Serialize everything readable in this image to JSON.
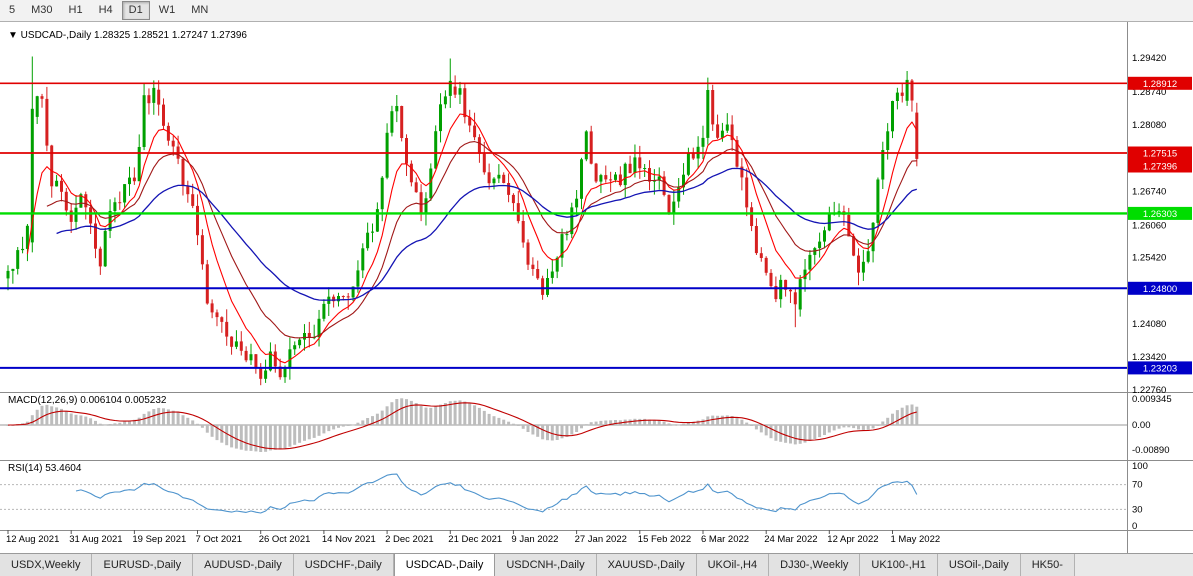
{
  "toolbar": {
    "timeframes": [
      "5",
      "M30",
      "H1",
      "H4",
      "D1",
      "W1",
      "MN"
    ],
    "selected": "D1"
  },
  "chart": {
    "header": {
      "symbol_label": "USDCAD-,Daily",
      "ohlc": [
        "1.28325",
        "1.28521",
        "1.27247",
        "1.27396"
      ]
    },
    "y_axis_labels": [
      "1.29420",
      "1.28740",
      "1.28080",
      "1.27400",
      "1.26740",
      "1.26060",
      "1.25420",
      "1.24740",
      "1.24080",
      "1.23420",
      "1.22760"
    ],
    "x_axis_labels": [
      "12 Aug 2021",
      "31 Aug 2021",
      "19 Sep 2021",
      "7 Oct 2021",
      "26 Oct 2021",
      "14 Nov 2021",
      "2 Dec 2021",
      "21 Dec 2021",
      "9 Jan 2022",
      "27 Jan 2022",
      "15 Feb 2022",
      "6 Mar 2022",
      "24 Mar 2022",
      "12 Apr 2022",
      "1 May 2022"
    ],
    "levels": [
      {
        "price": 1.28912,
        "label": "1.28912",
        "color": "#e00000",
        "width": 1.7,
        "type": "resistance"
      },
      {
        "price": 1.27515,
        "label": "1.27515",
        "color": "#e00000",
        "width": 1.7,
        "type": "resistance"
      },
      {
        "price": 1.26303,
        "label": "1.26303",
        "color": "#00dd00",
        "width": 2.4,
        "type": "support"
      },
      {
        "price": 1.248,
        "label": "1.24800",
        "color": "#0000c8",
        "width": 2.0,
        "type": "support"
      },
      {
        "price": 1.23203,
        "label": "1.23203",
        "color": "#0000c8",
        "width": 2.0,
        "type": "support"
      }
    ],
    "current_price": {
      "label": "1.27396",
      "value": 1.27396,
      "color": "#e00000"
    },
    "ma_colors": {
      "fast": "#ff0000",
      "mid": "#a01818",
      "slow": "#1414b4"
    }
  },
  "macd": {
    "label": "MACD(12,26,9) 0.006104 0.005232",
    "axis_labels": [
      "0.009345",
      "0.00",
      "-0.00890"
    ],
    "histogram_color": "#bdbdbd",
    "signal_color": "#c00000"
  },
  "rsi": {
    "label": "RSI(14) 53.4604",
    "axis_labels": [
      "100",
      "70",
      "30",
      "0"
    ],
    "levels": [
      70,
      30
    ],
    "line_color": "#4f94cd"
  },
  "tabs": {
    "items": [
      "USDX,Weekly",
      "EURUSD-,Daily",
      "AUDUSD-,Daily",
      "USDCHF-,Daily",
      "USDCAD-,Daily",
      "USDCNH-,Daily",
      "XAUUSD-,Daily",
      "UKOil-,H4",
      "DJ30-,Weekly",
      "UK100-,H1",
      "USOil-,Daily",
      "HK50-"
    ],
    "selected": "USDCAD-,Daily"
  },
  "chart_data": {
    "type": "candlestick",
    "symbol": "USDCAD",
    "timeframe": "Daily",
    "y_range": [
      1.223,
      1.2965
    ],
    "x_tick_dates": [
      "12 Aug 2021",
      "31 Aug 2021",
      "19 Sep 2021",
      "7 Oct 2021",
      "26 Oct 2021",
      "14 Nov 2021",
      "2 Dec 2021",
      "21 Dec 2021",
      "9 Jan 2022",
      "27 Jan 2022",
      "15 Feb 2022",
      "6 Mar 2022",
      "24 Mar 2022",
      "12 Apr 2022",
      "1 May 2022"
    ],
    "bar_count": 188,
    "first_open": 1.25,
    "close_noise": 0.0036,
    "wick_noise": 0.0026,
    "colors": {
      "up": "#00a000",
      "down": "#d62020"
    },
    "anchors": [
      [
        0,
        1.2515
      ],
      [
        3,
        1.2555
      ],
      [
        4,
        1.259
      ],
      [
        5,
        1.284
      ],
      [
        7,
        1.2865
      ],
      [
        9,
        1.27
      ],
      [
        12,
        1.2635
      ],
      [
        13,
        1.2615
      ],
      [
        15,
        1.2665
      ],
      [
        17,
        1.26
      ],
      [
        19,
        1.2525
      ],
      [
        21,
        1.264
      ],
      [
        24,
        1.268
      ],
      [
        26,
        1.27
      ],
      [
        28,
        1.285
      ],
      [
        30,
        1.288
      ],
      [
        33,
        1.279
      ],
      [
        36,
        1.27
      ],
      [
        39,
        1.2595
      ],
      [
        41,
        1.2455
      ],
      [
        44,
        1.2405
      ],
      [
        47,
        1.236
      ],
      [
        50,
        1.233
      ],
      [
        52,
        1.231
      ],
      [
        54,
        1.2338
      ],
      [
        56,
        1.2302
      ],
      [
        58,
        1.236
      ],
      [
        60,
        1.2395
      ],
      [
        62,
        1.2372
      ],
      [
        65,
        1.244
      ],
      [
        68,
        1.2468
      ],
      [
        70,
        1.245
      ],
      [
        73,
        1.255
      ],
      [
        76,
        1.2625
      ],
      [
        78,
        1.28
      ],
      [
        80,
        1.2838
      ],
      [
        83,
        1.27
      ],
      [
        85,
        1.2622
      ],
      [
        87,
        1.272
      ],
      [
        89,
        1.2852
      ],
      [
        91,
        1.289
      ],
      [
        93,
        1.2868
      ],
      [
        95,
        1.28
      ],
      [
        97,
        1.2752
      ],
      [
        99,
        1.269
      ],
      [
        101,
        1.2722
      ],
      [
        104,
        1.2642
      ],
      [
        106,
        1.2562
      ],
      [
        108,
        1.2512
      ],
      [
        110,
        1.2482
      ],
      [
        112,
        1.2502
      ],
      [
        114,
        1.2576
      ],
      [
        117,
        1.2662
      ],
      [
        119,
        1.278
      ],
      [
        121,
        1.2702
      ],
      [
        124,
        1.268
      ],
      [
        127,
        1.2716
      ],
      [
        130,
        1.273
      ],
      [
        132,
        1.2682
      ],
      [
        134,
        1.2702
      ],
      [
        136,
        1.2642
      ],
      [
        138,
        1.27
      ],
      [
        140,
        1.2742
      ],
      [
        143,
        1.2782
      ],
      [
        144,
        1.286
      ],
      [
        146,
        1.278
      ],
      [
        148,
        1.2812
      ],
      [
        150,
        1.274
      ],
      [
        152,
        1.2652
      ],
      [
        154,
        1.2562
      ],
      [
        156,
        1.2502
      ],
      [
        158,
        1.2472
      ],
      [
        160,
        1.2492
      ],
      [
        162,
        1.245
      ],
      [
        164,
        1.2522
      ],
      [
        166,
        1.2562
      ],
      [
        169,
        1.2622
      ],
      [
        171,
        1.2652
      ],
      [
        173,
        1.2582
      ],
      [
        175,
        1.2502
      ],
      [
        177,
        1.2562
      ],
      [
        179,
        1.2682
      ],
      [
        181,
        1.2812
      ],
      [
        182,
        1.2862
      ],
      [
        184,
        1.2882
      ],
      [
        185,
        1.2896
      ],
      [
        186,
        1.2842
      ],
      [
        187,
        1.27396
      ]
    ],
    "key_candles": [
      {
        "i": 5,
        "o": 1.2572,
        "h": 1.2945,
        "l": 1.2552,
        "c": 1.284
      },
      {
        "i": 30,
        "o": 1.2852,
        "h": 1.2897,
        "l": 1.2828,
        "c": 1.2882
      },
      {
        "i": 91,
        "o": 1.2866,
        "h": 1.2941,
        "l": 1.2842,
        "c": 1.2896
      },
      {
        "i": 162,
        "o": 1.2472,
        "h": 1.2482,
        "l": 1.2402,
        "c": 1.2448
      },
      {
        "i": 185,
        "o": 1.2856,
        "h": 1.2916,
        "l": 1.2846,
        "c": 1.2898
      },
      {
        "i": 187,
        "o": 1.28325,
        "h": 1.28521,
        "l": 1.27247,
        "c": 1.27396
      }
    ],
    "last_ohlc": {
      "open": 1.28325,
      "high": 1.28521,
      "low": 1.27247,
      "close": 1.27396
    },
    "indicators": {
      "macd": {
        "params": "12,26,9",
        "value": 0.006104,
        "signal": 0.005232
      },
      "rsi": {
        "period": 14,
        "value": 53.4604
      }
    }
  }
}
